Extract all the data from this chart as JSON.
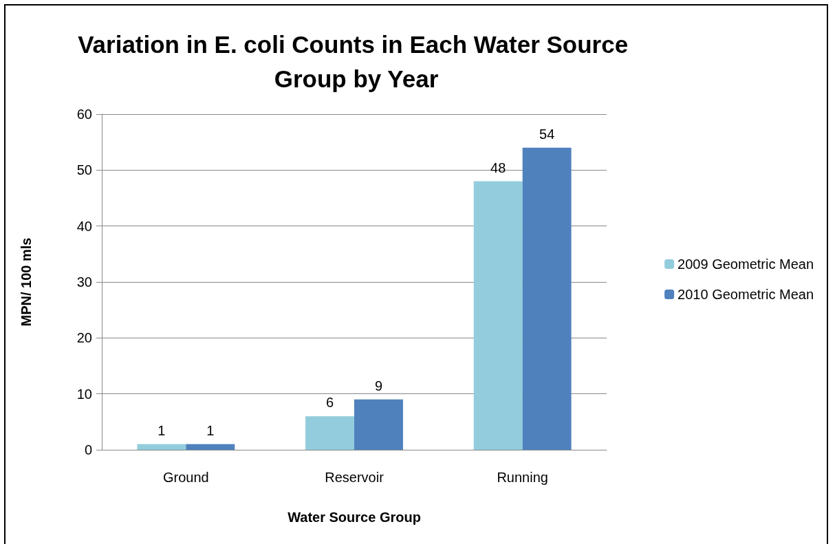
{
  "chart_data": {
    "type": "bar",
    "title": "Variation in E. coli Counts in Each Water Source Group by Year",
    "xlabel": "Water Source Group",
    "ylabel": "MPN/ 100 mls",
    "categories": [
      "Ground",
      "Reservoir",
      "Running"
    ],
    "series": [
      {
        "name": "2009 Geometric Mean",
        "color": "#93cddd",
        "values": [
          1,
          6,
          48
        ]
      },
      {
        "name": "2010 Geometric Mean",
        "color": "#4f81bd",
        "values": [
          1,
          9,
          54
        ]
      }
    ],
    "ylim": [
      0,
      60
    ],
    "yticks": [
      0,
      10,
      20,
      30,
      40,
      50,
      60
    ],
    "grid": "y",
    "legend": "right",
    "data_labels": true
  }
}
